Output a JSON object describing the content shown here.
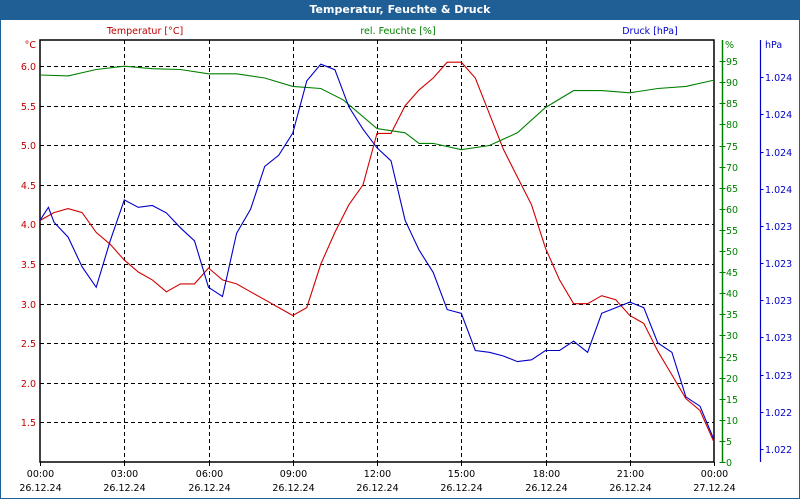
{
  "title": "Temperatur, Feuchte & Druck",
  "chart_data": {
    "type": "line",
    "title": "Temperatur, Feuchte & Druck",
    "x_unit": "hours since 26.12.24 00:00",
    "xlim": [
      0,
      24
    ],
    "x_ticks": [
      {
        "time": "00:00",
        "date": "26.12.24",
        "h": 0
      },
      {
        "time": "03:00",
        "date": "26.12.24",
        "h": 3
      },
      {
        "time": "06:00",
        "date": "26.12.24",
        "h": 6
      },
      {
        "time": "09:00",
        "date": "26.12.24",
        "h": 9
      },
      {
        "time": "12:00",
        "date": "26.12.24",
        "h": 12
      },
      {
        "time": "15:00",
        "date": "26.12.24",
        "h": 15
      },
      {
        "time": "18:00",
        "date": "26.12.24",
        "h": 18
      },
      {
        "time": "21:00",
        "date": "26.12.24",
        "h": 21
      },
      {
        "time": "00:00",
        "date": "27.12.24",
        "h": 24
      }
    ],
    "grid": true,
    "axes": {
      "temperature": {
        "label": "°C",
        "legend": "Temperatur [°C]",
        "color": "#c00000",
        "ylim": [
          1.0,
          6.33
        ],
        "ticks": [
          {
            "v": 6.0,
            "t": "6.0"
          },
          {
            "v": 5.5,
            "t": "5.5"
          },
          {
            "v": 5.0,
            "t": "5.0"
          },
          {
            "v": 4.5,
            "t": "4.5"
          },
          {
            "v": 4.0,
            "t": "4.0"
          },
          {
            "v": 3.5,
            "t": "3.5"
          },
          {
            "v": 3.0,
            "t": "3.0"
          },
          {
            "v": 2.5,
            "t": "2.5"
          },
          {
            "v": 2.0,
            "t": "2.0"
          },
          {
            "v": 1.5,
            "t": "1.5"
          }
        ]
      },
      "humidity": {
        "label": "%",
        "legend": "rel. Feuchte [%]",
        "color": "#008000",
        "ylim": [
          0,
          100
        ],
        "ticks": [
          {
            "v": 95,
            "t": "95"
          },
          {
            "v": 90,
            "t": "90"
          },
          {
            "v": 85,
            "t": "85"
          },
          {
            "v": 80,
            "t": "80"
          },
          {
            "v": 75,
            "t": "75"
          },
          {
            "v": 70,
            "t": "70"
          },
          {
            "v": 65,
            "t": "65"
          },
          {
            "v": 60,
            "t": "60"
          },
          {
            "v": 55,
            "t": "55"
          },
          {
            "v": 50,
            "t": "50"
          },
          {
            "v": 45,
            "t": "45"
          },
          {
            "v": 40,
            "t": "40"
          },
          {
            "v": 35,
            "t": "35"
          },
          {
            "v": 30,
            "t": "30"
          },
          {
            "v": 25,
            "t": "25"
          },
          {
            "v": 20,
            "t": "20"
          },
          {
            "v": 15,
            "t": "15"
          },
          {
            "v": 10,
            "t": "10"
          },
          {
            "v": 5,
            "t": "5"
          },
          {
            "v": 0,
            "t": "0"
          }
        ]
      },
      "pressure": {
        "label": "hPa",
        "legend": "Druck [hPa]",
        "color": "#0000c8",
        "ylim": [
          1022.08,
          1024.35
        ],
        "ticks": [
          {
            "v": 1024.15,
            "t": "1.024"
          },
          {
            "v": 1023.95,
            "t": "1.024"
          },
          {
            "v": 1023.75,
            "t": "1.024"
          },
          {
            "v": 1023.55,
            "t": "1.024"
          },
          {
            "v": 1023.35,
            "t": "1.023"
          },
          {
            "v": 1023.15,
            "t": "1.023"
          },
          {
            "v": 1022.95,
            "t": "1.023"
          },
          {
            "v": 1022.75,
            "t": "1.023"
          },
          {
            "v": 1022.55,
            "t": "1.023"
          },
          {
            "v": 1022.35,
            "t": "1.022"
          },
          {
            "v": 1022.15,
            "t": "1.022"
          }
        ]
      }
    },
    "series": [
      {
        "name": "Temperatur [°C]",
        "axis": "temperature",
        "color": "#d00000",
        "x": [
          0,
          0.5,
          1,
          1.5,
          2,
          2.5,
          3,
          3.5,
          4,
          4.5,
          5,
          5.5,
          6,
          6.5,
          7,
          7.5,
          8,
          8.5,
          9,
          9.5,
          10,
          10.5,
          11,
          11.5,
          12,
          12.5,
          13,
          13.5,
          14,
          14.5,
          15,
          15.5,
          16,
          16.5,
          17,
          17.5,
          18,
          18.5,
          19,
          19.5,
          20,
          20.5,
          21,
          21.5,
          22,
          22.5,
          23,
          23.5,
          24
        ],
        "values": [
          4.05,
          4.15,
          4.2,
          4.15,
          3.9,
          3.75,
          3.55,
          3.4,
          3.3,
          3.15,
          3.25,
          3.25,
          3.45,
          3.3,
          3.25,
          3.15,
          3.05,
          2.95,
          2.85,
          2.95,
          3.5,
          3.9,
          4.25,
          4.5,
          5.15,
          5.15,
          5.5,
          5.7,
          5.85,
          6.05,
          6.05,
          5.85,
          5.4,
          4.95,
          4.6,
          4.25,
          3.7,
          3.3,
          3.0,
          3.0,
          3.1,
          3.05,
          2.85,
          2.75,
          2.4,
          2.1,
          1.8,
          1.65,
          1.25
        ]
      },
      {
        "name": "rel. Feuchte [%]",
        "axis": "humidity",
        "color": "#008000",
        "x": [
          0,
          1,
          2,
          3,
          4,
          5,
          6,
          7,
          8,
          9,
          10,
          10.8,
          12,
          13,
          13.5,
          14,
          15,
          16,
          17,
          18,
          19,
          20,
          21,
          22,
          23,
          24
        ],
        "values": [
          91.7,
          91.5,
          93,
          93.8,
          93.2,
          93,
          92,
          92,
          91,
          89,
          88.5,
          85.8,
          79,
          78,
          75.5,
          75.5,
          74,
          75,
          78,
          84,
          88,
          88,
          87.5,
          88.5,
          89,
          90.5
        ]
      },
      {
        "name": "Druck [hPa]",
        "axis": "pressure",
        "color": "#0000c8",
        "x": [
          0,
          0.3,
          0.5,
          1,
          1.5,
          2,
          2.5,
          3,
          3.5,
          4,
          4.5,
          5,
          5.5,
          6,
          6.5,
          7,
          7.5,
          8,
          8.5,
          9,
          9.5,
          10,
          10.5,
          11,
          11.5,
          12,
          12.5,
          13,
          13.5,
          14,
          14.5,
          15,
          15.5,
          16,
          16.5,
          17,
          17.5,
          18,
          18.5,
          19,
          19.5,
          20,
          20.5,
          21,
          21.5,
          22,
          22.5,
          23,
          23.5,
          24
        ],
        "values": [
          1023.38,
          1023.45,
          1023.37,
          1023.29,
          1023.13,
          1023.02,
          1023.27,
          1023.49,
          1023.45,
          1023.46,
          1023.42,
          1023.34,
          1023.27,
          1023.02,
          1022.97,
          1023.31,
          1023.44,
          1023.67,
          1023.73,
          1023.85,
          1024.13,
          1024.22,
          1024.19,
          1023.99,
          1023.87,
          1023.77,
          1023.7,
          1023.38,
          1023.22,
          1023.1,
          1022.9,
          1022.88,
          1022.68,
          1022.67,
          1022.65,
          1022.62,
          1022.63,
          1022.68,
          1022.68,
          1022.73,
          1022.67,
          1022.88,
          1022.91,
          1022.94,
          1022.91,
          1022.72,
          1022.67,
          1022.43,
          1022.38,
          1022.2
        ]
      }
    ]
  }
}
